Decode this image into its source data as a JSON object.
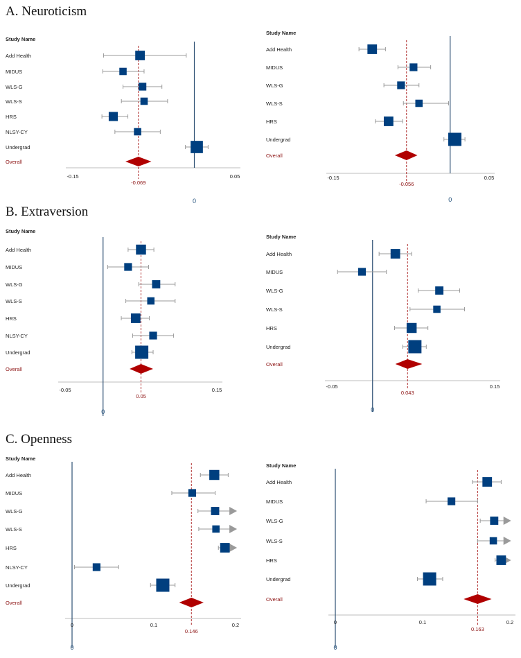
{
  "colors": {
    "box": "#003f7f",
    "diamond": "#b00000",
    "ci": "#9a9a9a",
    "zero_line": "#2d4f73",
    "ref_line": "#b03030",
    "axis": "#bdbdbd",
    "arrow": "#9a9a9a"
  },
  "header_label": "Study Name",
  "overall_label": "Overall",
  "zero_label": "0",
  "chart_data": [
    {
      "type": "forest",
      "section_title": "A. Neuroticism",
      "xlim": [
        -0.15,
        0.05
      ],
      "ticks": [
        {
          "value": -0.15,
          "label": "-0.15"
        },
        {
          "value": 0.05,
          "label": "0.05"
        }
      ],
      "zero_label": "0",
      "studies": [
        {
          "name": "Add Health",
          "est": -0.067,
          "lo": -0.112,
          "hi": -0.01,
          "w": 0.6
        },
        {
          "name": "MIDUS",
          "est": -0.088,
          "lo": -0.113,
          "hi": -0.062,
          "w": 0.35
        },
        {
          "name": "WLS-G",
          "est": -0.064,
          "lo": -0.088,
          "hi": -0.04,
          "w": 0.4
        },
        {
          "name": "WLS-S",
          "est": -0.062,
          "lo": -0.09,
          "hi": -0.033,
          "w": 0.35
        },
        {
          "name": "HRS",
          "est": -0.1,
          "lo": -0.114,
          "hi": -0.082,
          "w": 0.55
        },
        {
          "name": "NLSY-CY",
          "est": -0.07,
          "lo": -0.098,
          "hi": -0.042,
          "w": 0.35
        },
        {
          "name": "Undergrad",
          "est": 0.003,
          "lo": -0.011,
          "hi": 0.017,
          "w": 0.9
        }
      ],
      "overall": {
        "est": -0.069,
        "lo": -0.085,
        "hi": -0.053,
        "label": "-0.069"
      }
    },
    {
      "type": "forest",
      "section_title": "",
      "xlim": [
        -0.15,
        0.05
      ],
      "ticks": [
        {
          "value": -0.15,
          "label": "-0.15"
        },
        {
          "value": 0.05,
          "label": "0.05"
        }
      ],
      "zero_label": "0",
      "studies": [
        {
          "name": "Add Health",
          "est": -0.1,
          "lo": -0.117,
          "hi": -0.083,
          "w": 0.6
        },
        {
          "name": "MIDUS",
          "est": -0.047,
          "lo": -0.067,
          "hi": -0.025,
          "w": 0.4
        },
        {
          "name": "WLS-G",
          "est": -0.063,
          "lo": -0.085,
          "hi": -0.04,
          "w": 0.4
        },
        {
          "name": "WLS-S",
          "est": -0.04,
          "lo": -0.06,
          "hi": -0.002,
          "w": 0.35
        },
        {
          "name": "HRS",
          "est": -0.079,
          "lo": -0.096,
          "hi": -0.061,
          "w": 0.6
        },
        {
          "name": "Undergrad",
          "est": 0.006,
          "lo": -0.008,
          "hi": 0.019,
          "w": 1.0
        }
      ],
      "overall": {
        "est": -0.056,
        "lo": -0.071,
        "hi": -0.042,
        "label": "-0.056"
      }
    },
    {
      "type": "forest",
      "section_title": "B. Extraversion",
      "xlim": [
        -0.05,
        0.15
      ],
      "ticks": [
        {
          "value": -0.05,
          "label": "-0.05"
        },
        {
          "value": 0.15,
          "label": "0.15"
        }
      ],
      "zero_label": "0",
      "studies": [
        {
          "name": "Add Health",
          "est": 0.05,
          "lo": 0.033,
          "hi": 0.067,
          "w": 0.65
        },
        {
          "name": "MIDUS",
          "est": 0.033,
          "lo": 0.006,
          "hi": 0.06,
          "w": 0.4
        },
        {
          "name": "WLS-G",
          "est": 0.07,
          "lo": 0.047,
          "hi": 0.095,
          "w": 0.45
        },
        {
          "name": "WLS-S",
          "est": 0.063,
          "lo": 0.03,
          "hi": 0.095,
          "w": 0.35
        },
        {
          "name": "HRS",
          "est": 0.043,
          "lo": 0.024,
          "hi": 0.061,
          "w": 0.6
        },
        {
          "name": "NLSY-CY",
          "est": 0.066,
          "lo": 0.039,
          "hi": 0.093,
          "w": 0.4
        },
        {
          "name": "Undergrad",
          "est": 0.051,
          "lo": 0.038,
          "hi": 0.066,
          "w": 1.0
        }
      ],
      "overall": {
        "est": 0.05,
        "lo": 0.035,
        "hi": 0.066,
        "label": "0.05"
      }
    },
    {
      "type": "forest",
      "section_title": "",
      "xlim": [
        -0.05,
        0.15
      ],
      "ticks": [
        {
          "value": -0.05,
          "label": "-0.05"
        },
        {
          "value": 0.15,
          "label": "0.15"
        }
      ],
      "zero_label": "0",
      "studies": [
        {
          "name": "Add Health",
          "est": 0.028,
          "lo": 0.008,
          "hi": 0.048,
          "w": 0.6
        },
        {
          "name": "MIDUS",
          "est": -0.013,
          "lo": -0.043,
          "hi": 0.017,
          "w": 0.4
        },
        {
          "name": "WLS-G",
          "est": 0.082,
          "lo": 0.056,
          "hi": 0.107,
          "w": 0.45
        },
        {
          "name": "WLS-S",
          "est": 0.079,
          "lo": 0.046,
          "hi": 0.113,
          "w": 0.35
        },
        {
          "name": "HRS",
          "est": 0.048,
          "lo": 0.027,
          "hi": 0.068,
          "w": 0.65
        },
        {
          "name": "Undergrad",
          "est": 0.052,
          "lo": 0.037,
          "hi": 0.066,
          "w": 1.0
        }
      ],
      "overall": {
        "est": 0.043,
        "lo": 0.028,
        "hi": 0.061,
        "label": "0.043"
      }
    },
    {
      "type": "forest",
      "section_title": "C. Openness",
      "xlim": [
        0,
        0.2
      ],
      "ticks": [
        {
          "value": 0,
          "label": "0"
        },
        {
          "value": 0.1,
          "label": "0.1"
        },
        {
          "value": 0.2,
          "label": "0.2"
        }
      ],
      "zero_label": "0",
      "studies": [
        {
          "name": "Add Health",
          "est": 0.174,
          "lo": 0.157,
          "hi": 0.191,
          "w": 0.65
        },
        {
          "name": "MIDUS",
          "est": 0.147,
          "lo": 0.122,
          "hi": 0.175,
          "w": 0.4
        },
        {
          "name": "WLS-G",
          "est": 0.175,
          "lo": 0.154,
          "hi": 0.195,
          "w": 0.45,
          "arrow": true
        },
        {
          "name": "WLS-S",
          "est": 0.176,
          "lo": 0.155,
          "hi": 0.195,
          "w": 0.35,
          "arrow": true
        },
        {
          "name": "HRS",
          "est": 0.187,
          "lo": 0.179,
          "hi": 0.195,
          "w": 0.6,
          "arrow": true
        },
        {
          "name": "NLSY-CY",
          "est": 0.03,
          "lo": 0.003,
          "hi": 0.057,
          "w": 0.4
        },
        {
          "name": "Undergrad",
          "est": 0.111,
          "lo": 0.096,
          "hi": 0.126,
          "w": 1.0
        }
      ],
      "overall": {
        "est": 0.146,
        "lo": 0.131,
        "hi": 0.161,
        "label": "0.146"
      }
    },
    {
      "type": "forest",
      "section_title": "",
      "xlim": [
        0,
        0.2
      ],
      "ticks": [
        {
          "value": 0,
          "label": "0"
        },
        {
          "value": 0.1,
          "label": "0.1"
        },
        {
          "value": 0.2,
          "label": "0.2"
        }
      ],
      "zero_label": "0",
      "studies": [
        {
          "name": "Add Health",
          "est": 0.174,
          "lo": 0.157,
          "hi": 0.19,
          "w": 0.6
        },
        {
          "name": "MIDUS",
          "est": 0.133,
          "lo": 0.104,
          "hi": 0.163,
          "w": 0.4
        },
        {
          "name": "WLS-G",
          "est": 0.182,
          "lo": 0.166,
          "hi": 0.195,
          "w": 0.45,
          "arrow": true
        },
        {
          "name": "WLS-S",
          "est": 0.181,
          "lo": 0.163,
          "hi": 0.195,
          "w": 0.35,
          "arrow": true
        },
        {
          "name": "HRS",
          "est": 0.19,
          "lo": 0.183,
          "hi": 0.195,
          "w": 0.6,
          "arrow": true
        },
        {
          "name": "Undergrad",
          "est": 0.108,
          "lo": 0.094,
          "hi": 0.123,
          "w": 1.0
        }
      ],
      "overall": {
        "est": 0.163,
        "lo": 0.147,
        "hi": 0.179,
        "label": "0.163"
      }
    }
  ]
}
